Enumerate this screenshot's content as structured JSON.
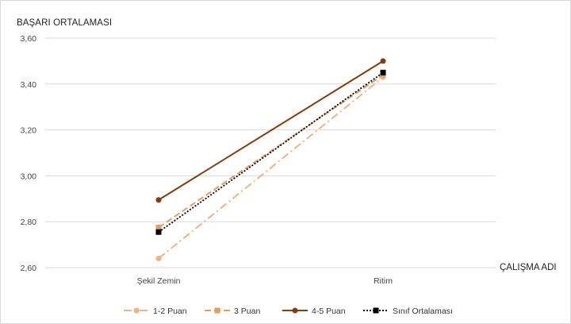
{
  "chart_data": {
    "type": "line",
    "ylabel": "BAŞARI ORTALAMASI",
    "xlabel": "ÇALIŞMA ADI",
    "categories": [
      "Şekil Zemin",
      "Ritim"
    ],
    "ylim": [
      2.6,
      3.6
    ],
    "yticks": [
      "2,60",
      "2,80",
      "3,00",
      "3,20",
      "3,40",
      "3,60"
    ],
    "ytick_values": [
      2.6,
      2.8,
      3.0,
      3.2,
      3.4,
      3.6
    ],
    "grid": true,
    "legend_position": "bottom",
    "series": [
      {
        "name": "1-2 Puan",
        "values": [
          2.64,
          3.43
        ],
        "color": "#f4b183",
        "dash": "dash-dot",
        "marker": "circle"
      },
      {
        "name": "3 Puan",
        "values": [
          2.775,
          3.44
        ],
        "color": "#e59c62",
        "dash": "dashed",
        "marker": "square"
      },
      {
        "name": "4-5 Puan",
        "values": [
          2.895,
          3.5
        ],
        "color": "#843c0c",
        "dash": "solid",
        "marker": "circle"
      },
      {
        "name": "Sınıf Ortalaması",
        "values": [
          2.755,
          3.45
        ],
        "color": "#000000",
        "dash": "dotted",
        "marker": "square"
      }
    ]
  }
}
